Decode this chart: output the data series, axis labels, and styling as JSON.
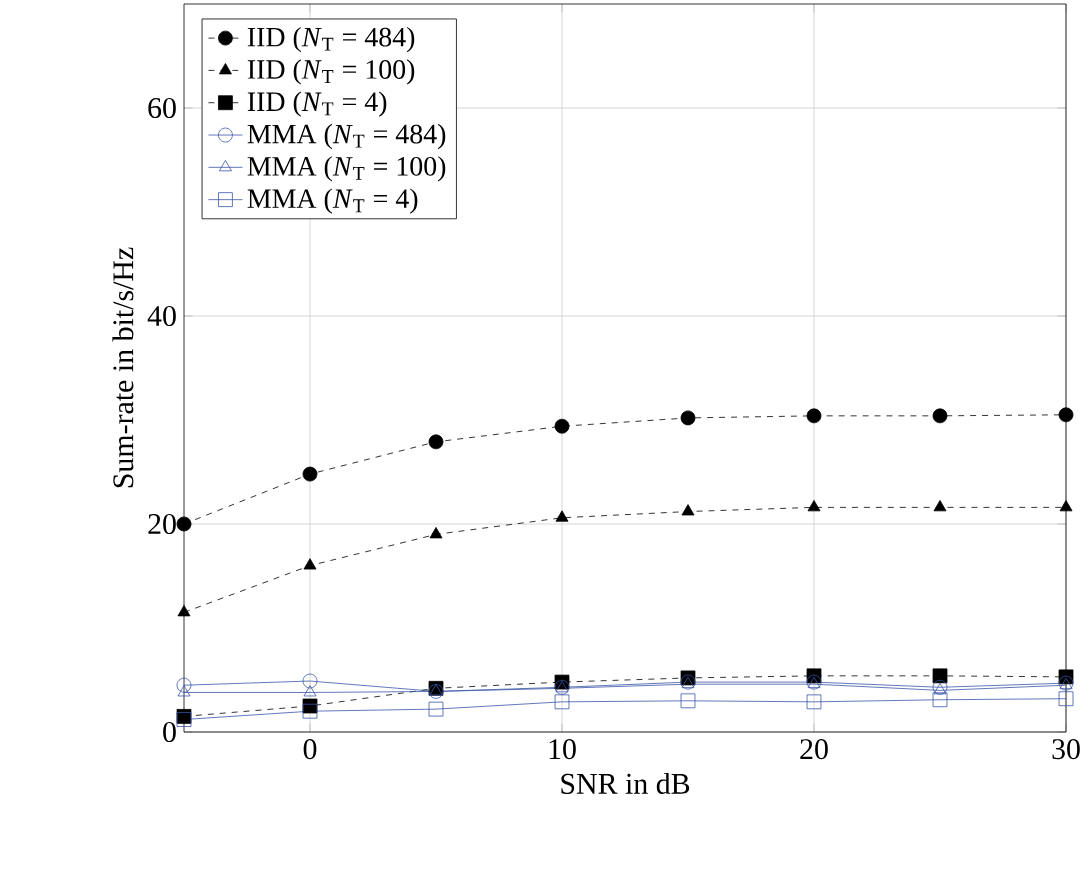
{
  "chart_data": {
    "type": "line",
    "xlabel": "SNR in dB",
    "ylabel": "Sum-rate in bit/s/Hz",
    "x": [
      -5,
      0,
      5,
      10,
      15,
      20,
      25,
      30
    ],
    "xlim": [
      -5,
      30
    ],
    "xticks": [
      0,
      10,
      20,
      30
    ],
    "ylim": [
      0,
      70
    ],
    "yticks": [
      0,
      20,
      40,
      60
    ],
    "grid": true,
    "legend": "top left",
    "series": [
      {
        "name": "IID (*N*$_{T}$ = 484)",
        "color": "#000000",
        "marker": "circle",
        "line_style": "dashed",
        "values": [
          20.0,
          24.8,
          27.9,
          29.4,
          30.2,
          30.4,
          30.4,
          30.5
        ]
      },
      {
        "name": "IID (*N*$_{T}$ = 100)",
        "color": "#000000",
        "marker": "triangle",
        "line_style": "dashed",
        "values": [
          11.5,
          16.0,
          19.0,
          20.6,
          21.2,
          21.6,
          21.6,
          21.6
        ]
      },
      {
        "name": "IID (*N*$_{T}$ = 4)",
        "color": "#000000",
        "marker": "square",
        "line_style": "dashed",
        "values": [
          1.5,
          2.5,
          4.2,
          4.8,
          5.2,
          5.4,
          5.4,
          5.3
        ]
      },
      {
        "name": "MMA (*N*$_{T}$ = 484)",
        "color": "#3b55a8",
        "marker": "circle",
        "line_style": "solid",
        "values": [
          4.5,
          4.9,
          3.9,
          4.3,
          4.8,
          4.8,
          4.3,
          4.7
        ]
      },
      {
        "name": "MMA (*N*$_{T}$ = 100)",
        "color": "#3b55a8",
        "marker": "triangle",
        "line_style": "solid",
        "values": [
          3.8,
          3.8,
          3.9,
          4.2,
          4.6,
          4.6,
          4.0,
          4.5
        ]
      },
      {
        "name": "MMA (*N*$_{T}$ = 4)",
        "color": "#3b55a8",
        "marker": "square",
        "line_style": "solid",
        "values": [
          1.2,
          2.0,
          2.2,
          2.9,
          3.0,
          2.9,
          3.1,
          3.2
        ]
      }
    ]
  }
}
